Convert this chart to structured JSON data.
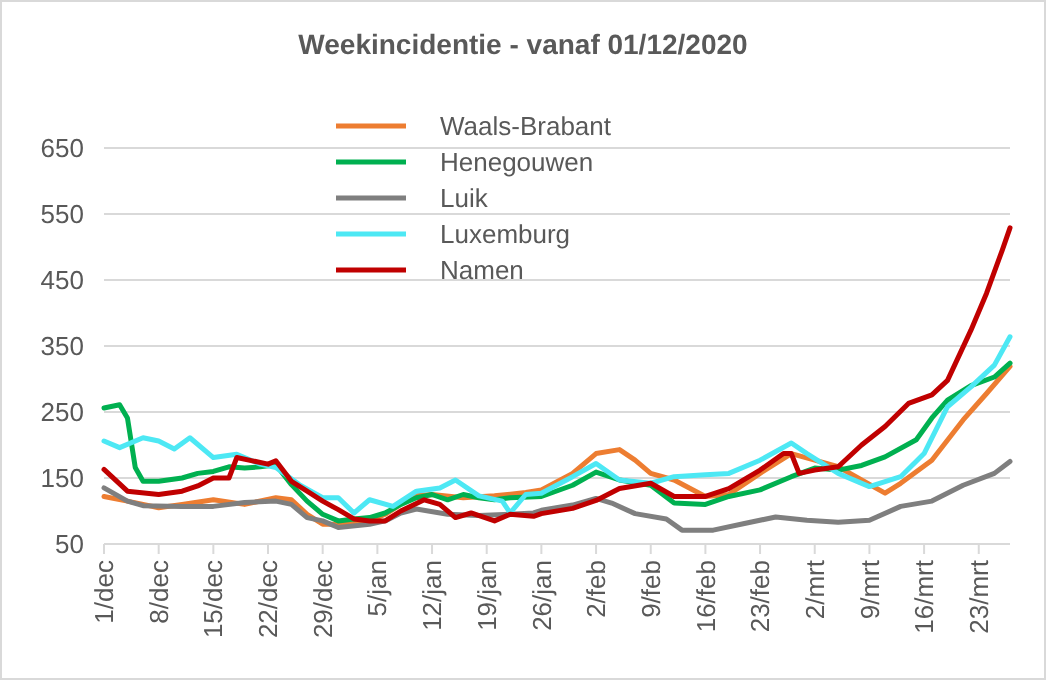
{
  "chart_data": {
    "type": "line",
    "title": "Weekincidentie  - vanaf 01/12/2020",
    "xlim": [
      "2020-12-01",
      "2021-03-27"
    ],
    "ylim": [
      50,
      650
    ],
    "yticks": [
      50,
      150,
      250,
      350,
      450,
      550,
      650
    ],
    "xticks": [
      {
        "value": "2020-12-01",
        "label": "1/dec"
      },
      {
        "value": "2020-12-08",
        "label": "8/dec"
      },
      {
        "value": "2020-12-15",
        "label": "15/dec"
      },
      {
        "value": "2020-12-22",
        "label": "22/dec"
      },
      {
        "value": "2020-12-29",
        "label": "29/dec"
      },
      {
        "value": "2021-01-05",
        "label": "5/jan"
      },
      {
        "value": "2021-01-12",
        "label": "12/jan"
      },
      {
        "value": "2021-01-19",
        "label": "19/jan"
      },
      {
        "value": "2021-01-26",
        "label": "26/jan"
      },
      {
        "value": "2021-02-02",
        "label": "2/feb"
      },
      {
        "value": "2021-02-09",
        "label": "9/feb"
      },
      {
        "value": "2021-02-16",
        "label": "16/feb"
      },
      {
        "value": "2021-02-23",
        "label": "23/feb"
      },
      {
        "value": "2021-03-02",
        "label": "2/mrt"
      },
      {
        "value": "2021-03-09",
        "label": "9/mrt"
      },
      {
        "value": "2021-03-16",
        "label": "16/mrt"
      },
      {
        "value": "2021-03-23",
        "label": "23/mrt"
      }
    ],
    "grid": "y",
    "legend": "top",
    "marker": "none",
    "line_style": "solid",
    "series": [
      {
        "name": "Waals-Brabant",
        "color": "#ed7d31",
        "x": [
          "2020-12-01",
          "2020-12-04",
          "2020-12-08",
          "2020-12-11",
          "2020-12-15",
          "2020-12-19",
          "2020-12-23",
          "2020-12-25",
          "2020-12-27",
          "2020-12-29",
          "2020-12-31",
          "2021-01-04",
          "2021-01-06",
          "2021-01-08",
          "2021-01-10",
          "2021-01-12",
          "2021-01-16",
          "2021-01-20",
          "2021-01-24",
          "2021-01-26",
          "2021-01-30",
          "2021-02-02",
          "2021-02-05",
          "2021-02-07",
          "2021-02-09",
          "2021-02-12",
          "2021-02-16",
          "2021-02-19",
          "2021-02-23",
          "2021-02-27",
          "2021-03-02",
          "2021-03-05",
          "2021-03-08",
          "2021-03-11",
          "2021-03-13",
          "2021-03-17",
          "2021-03-21",
          "2021-03-24",
          "2021-03-27"
        ],
        "values": [
          122,
          115,
          105,
          110,
          117,
          110,
          120,
          117,
          95,
          80,
          80,
          85,
          95,
          110,
          123,
          125,
          120,
          123,
          128,
          132,
          157,
          187,
          193,
          177,
          157,
          147,
          122,
          125,
          157,
          187,
          177,
          167,
          147,
          127,
          142,
          177,
          238,
          278,
          319
        ]
      },
      {
        "name": "Henegouwen",
        "color": "#00b050",
        "x": [
          "2020-12-01",
          "2020-12-03",
          "2020-12-04",
          "2020-12-05",
          "2020-12-06",
          "2020-12-08",
          "2020-12-11",
          "2020-12-13",
          "2020-12-15",
          "2020-12-17",
          "2020-12-19",
          "2020-12-21",
          "2020-12-23",
          "2020-12-25",
          "2020-12-27",
          "2020-12-29",
          "2020-12-31",
          "2021-01-02",
          "2021-01-04",
          "2021-01-06",
          "2021-01-08",
          "2021-01-10",
          "2021-01-12",
          "2021-01-14",
          "2021-01-16",
          "2021-01-18",
          "2021-01-20",
          "2021-01-22",
          "2021-01-26",
          "2021-01-30",
          "2021-02-02",
          "2021-02-05",
          "2021-02-09",
          "2021-02-12",
          "2021-02-16",
          "2021-02-19",
          "2021-02-23",
          "2021-02-27",
          "2021-03-02",
          "2021-03-05",
          "2021-03-08",
          "2021-03-11",
          "2021-03-15",
          "2021-03-17",
          "2021-03-19",
          "2021-03-22",
          "2021-03-25",
          "2021-03-27"
        ],
        "values": [
          256,
          261,
          241,
          166,
          145,
          145,
          150,
          157,
          160,
          167,
          165,
          167,
          170,
          140,
          115,
          95,
          85,
          88,
          90,
          97,
          110,
          120,
          125,
          117,
          125,
          120,
          117,
          120,
          122,
          139,
          159,
          147,
          139,
          112,
          110,
          122,
          132,
          152,
          165,
          162,
          169,
          182,
          208,
          241,
          268,
          290,
          303,
          324
        ]
      },
      {
        "name": "Luik",
        "color": "#7f7f7f",
        "x": [
          "2020-12-01",
          "2020-12-04",
          "2020-12-06",
          "2020-12-11",
          "2020-12-15",
          "2020-12-19",
          "2020-12-23",
          "2020-12-25",
          "2020-12-27",
          "2020-12-29",
          "2020-12-31",
          "2021-01-04",
          "2021-01-06",
          "2021-01-08",
          "2021-01-10",
          "2021-01-14",
          "2021-01-18",
          "2021-01-22",
          "2021-01-25",
          "2021-01-26",
          "2021-01-30",
          "2021-02-02",
          "2021-02-04",
          "2021-02-07",
          "2021-02-11",
          "2021-02-13",
          "2021-02-17",
          "2021-02-21",
          "2021-02-25",
          "2021-03-01",
          "2021-03-05",
          "2021-03-09",
          "2021-03-13",
          "2021-03-17",
          "2021-03-21",
          "2021-03-25",
          "2021-03-27"
        ],
        "values": [
          135,
          115,
          108,
          107,
          107,
          113,
          115,
          110,
          90,
          85,
          75,
          80,
          85,
          97,
          103,
          95,
          93,
          95,
          97,
          101,
          109,
          119,
          112,
          96,
          88,
          71,
          71,
          81,
          91,
          86,
          83,
          86,
          107,
          115,
          139,
          157,
          175
        ]
      },
      {
        "name": "Luxemburg",
        "color": "#4de8f4",
        "x": [
          "2020-12-01",
          "2020-12-03",
          "2020-12-06",
          "2020-12-08",
          "2020-12-10",
          "2020-12-12",
          "2020-12-15",
          "2020-12-18",
          "2020-12-21",
          "2020-12-23",
          "2020-12-26",
          "2020-12-29",
          "2020-12-31",
          "2021-01-02",
          "2021-01-04",
          "2021-01-07",
          "2021-01-10",
          "2021-01-13",
          "2021-01-15",
          "2021-01-18",
          "2021-01-21",
          "2021-01-22",
          "2021-01-24",
          "2021-01-26",
          "2021-01-30",
          "2021-02-02",
          "2021-02-05",
          "2021-02-09",
          "2021-02-12",
          "2021-02-16",
          "2021-02-19",
          "2021-02-23",
          "2021-02-27",
          "2021-03-01",
          "2021-03-05",
          "2021-03-09",
          "2021-03-13",
          "2021-03-16",
          "2021-03-19",
          "2021-03-22",
          "2021-03-25",
          "2021-03-27"
        ],
        "values": [
          206,
          196,
          211,
          206,
          194,
          211,
          181,
          186,
          171,
          166,
          140,
          120,
          120,
          97,
          117,
          107,
          130,
          135,
          147,
          123,
          115,
          97,
          125,
          127,
          152,
          172,
          147,
          142,
          152,
          155,
          157,
          177,
          203,
          187,
          157,
          137,
          152,
          187,
          258,
          288,
          321,
          364
        ]
      },
      {
        "name": "Namen",
        "color": "#c00000",
        "x": [
          "2020-12-01",
          "2020-12-04",
          "2020-12-08",
          "2020-12-11",
          "2020-12-13",
          "2020-12-15",
          "2020-12-17",
          "2020-12-18",
          "2020-12-20",
          "2020-12-22",
          "2020-12-23",
          "2020-12-25",
          "2020-12-27",
          "2020-12-29",
          "2020-12-31",
          "2021-01-02",
          "2021-01-04",
          "2021-01-06",
          "2021-01-08",
          "2021-01-11",
          "2021-01-13",
          "2021-01-15",
          "2021-01-17",
          "2021-01-20",
          "2021-01-22",
          "2021-01-25",
          "2021-01-26",
          "2021-01-30",
          "2021-02-02",
          "2021-02-05",
          "2021-02-09",
          "2021-02-12",
          "2021-02-16",
          "2021-02-19",
          "2021-02-23",
          "2021-02-26",
          "2021-02-27",
          "2021-02-28",
          "2021-03-02",
          "2021-03-05",
          "2021-03-08",
          "2021-03-11",
          "2021-03-14",
          "2021-03-17",
          "2021-03-19",
          "2021-03-22",
          "2021-03-24",
          "2021-03-26",
          "2021-03-27"
        ],
        "values": [
          163,
          130,
          125,
          130,
          138,
          150,
          150,
          181,
          176,
          171,
          176,
          145,
          130,
          115,
          102,
          88,
          85,
          85,
          100,
          117,
          110,
          90,
          97,
          85,
          95,
          92,
          96,
          104,
          116,
          134,
          142,
          122,
          122,
          134,
          162,
          187,
          187,
          157,
          162,
          167,
          200,
          228,
          263,
          276,
          298,
          374,
          430,
          495,
          529
        ]
      }
    ]
  }
}
